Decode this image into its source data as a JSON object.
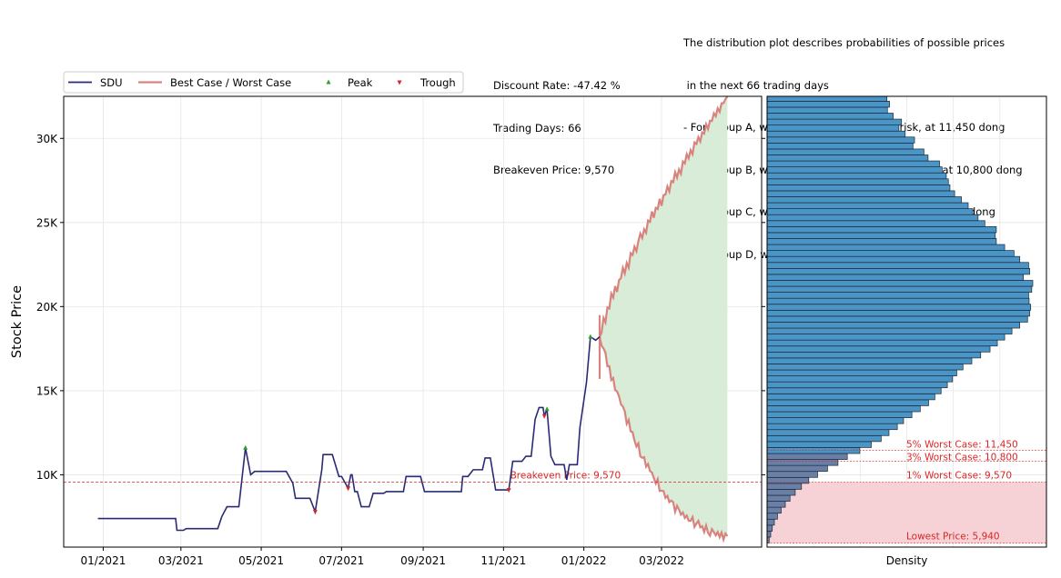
{
  "info_left": {
    "lines": [
      "Discount Rate: -47.42 %",
      "Trading Days: 66",
      "Breakeven Price: 9,570"
    ]
  },
  "info_right": {
    "lines": [
      "The distribution plot describes probabilities of possible prices",
      " in the next 66 trading days",
      "- For Group A, we propose to take higher risk, at 11,450 dong",
      "- For Group B, we propose to take moderate risk, at 10,800 dong",
      "- For Group C, we propose to take minor risk, at 9,570 dong",
      "- For Group D, we propose to take no risk, at 5,940 dong"
    ]
  },
  "colors": {
    "price_line": "#2b2b74",
    "band_line": "#d9837e",
    "band_fill": "#d8ecd8",
    "peak": "#2ca02c",
    "trough": "#d62728",
    "hist_bar": "#4a94c6",
    "hist_bar_low": "#6a7fa6",
    "risk_zone": "#f6d2d6",
    "breakeven": "#d62728"
  },
  "chart_data": [
    {
      "type": "line",
      "ylabel": "Stock Price",
      "xlabel": "",
      "ylim": [
        5700,
        32500
      ],
      "x_ticks": [
        "01/2021",
        "03/2021",
        "05/2021",
        "07/2021",
        "09/2021",
        "11/2021",
        "01/2022",
        "03/2022"
      ],
      "y_ticks": [
        "10K",
        "15K",
        "20K",
        "25K",
        "30K"
      ],
      "y_tick_values": [
        10000,
        15000,
        20000,
        25000,
        30000
      ],
      "grid": true,
      "legend": {
        "position": "top-left",
        "entries": [
          "SDU",
          "Best Case / Worst Case",
          "Peak",
          "Trough"
        ]
      },
      "breakeven": {
        "value": 9570,
        "label": "Breakeven Price: 9,570"
      },
      "series": [
        {
          "name": "SDU",
          "points": [
            [
              "2020-12-28",
              7400
            ],
            [
              "2021-02-25",
              7400
            ],
            [
              "2021-02-26",
              6700
            ],
            [
              "2021-03-03",
              6700
            ],
            [
              "2021-03-05",
              6800
            ],
            [
              "2021-03-29",
              6800
            ],
            [
              "2021-04-01",
              7500
            ],
            [
              "2021-04-05",
              8100
            ],
            [
              "2021-04-14",
              8100
            ],
            [
              "2021-04-19",
              11600
            ],
            [
              "2021-04-23",
              10000
            ],
            [
              "2021-04-26",
              10200
            ],
            [
              "2021-05-20",
              10200
            ],
            [
              "2021-05-25",
              9500
            ],
            [
              "2021-05-27",
              8600
            ],
            [
              "2021-06-07",
              8600
            ],
            [
              "2021-06-11",
              7800
            ],
            [
              "2021-06-16",
              10300
            ],
            [
              "2021-06-17",
              11200
            ],
            [
              "2021-06-24",
              11200
            ],
            [
              "2021-06-29",
              9900
            ],
            [
              "2021-07-01",
              9900
            ],
            [
              "2021-07-06",
              9200
            ],
            [
              "2021-07-08",
              10000
            ],
            [
              "2021-07-09",
              10000
            ],
            [
              "2021-07-11",
              9000
            ],
            [
              "2021-07-13",
              9000
            ],
            [
              "2021-07-16",
              8100
            ],
            [
              "2021-07-22",
              8100
            ],
            [
              "2021-07-25",
              8900
            ],
            [
              "2021-08-02",
              8900
            ],
            [
              "2021-08-04",
              9000
            ],
            [
              "2021-08-17",
              9000
            ],
            [
              "2021-08-19",
              9900
            ],
            [
              "2021-08-30",
              9900
            ],
            [
              "2021-09-02",
              9000
            ],
            [
              "2021-09-30",
              9000
            ],
            [
              "2021-10-01",
              9900
            ],
            [
              "2021-10-05",
              9900
            ],
            [
              "2021-10-09",
              10300
            ],
            [
              "2021-10-16",
              10300
            ],
            [
              "2021-10-18",
              11000
            ],
            [
              "2021-10-22",
              11000
            ],
            [
              "2021-10-26",
              9100
            ],
            [
              "2021-11-05",
              9100
            ],
            [
              "2021-11-08",
              10800
            ],
            [
              "2021-11-15",
              10800
            ],
            [
              "2021-11-18",
              11100
            ],
            [
              "2021-11-22",
              11100
            ],
            [
              "2021-11-25",
              13300
            ],
            [
              "2021-11-28",
              14000
            ],
            [
              "2021-12-01",
              14000
            ],
            [
              "2021-12-02",
              13500
            ],
            [
              "2021-12-04",
              13900
            ],
            [
              "2021-12-07",
              11100
            ],
            [
              "2021-12-10",
              10600
            ],
            [
              "2021-12-17",
              10600
            ],
            [
              "2021-12-19",
              9700
            ],
            [
              "2021-12-21",
              10600
            ],
            [
              "2021-12-27",
              10600
            ],
            [
              "2021-12-29",
              12800
            ],
            [
              "2022-01-03",
              15500
            ],
            [
              "2022-01-06",
              18200
            ],
            [
              "2022-01-10",
              18000
            ],
            [
              "2022-01-13",
              18200
            ]
          ]
        },
        {
          "name": "Best Case / Worst Case",
          "x_start": "2022-01-13",
          "x_end": "2022-04-20",
          "start_value": 18200,
          "best_end": 32500,
          "worst_end": 6600,
          "worst_min": 5940
        }
      ],
      "peaks": [
        [
          "2021-04-19",
          11600
        ],
        [
          "2021-12-04",
          13900
        ],
        [
          "2022-01-06",
          18200
        ]
      ],
      "troughs": [
        [
          "2021-06-11",
          7800
        ],
        [
          "2021-07-06",
          9200
        ],
        [
          "2021-11-05",
          9100
        ],
        [
          "2021-12-02",
          13500
        ]
      ]
    },
    {
      "type": "bar",
      "orientation": "horizontal",
      "xlabel": "Density",
      "bins_start": 5940,
      "bin_width": 355,
      "values": [
        0.4,
        0.7,
        1.0,
        1.4,
        2.0,
        2.7,
        3.5,
        4.4,
        5.4,
        6.6,
        8.0,
        9.7,
        11.6,
        13.6,
        15.4,
        17.8,
        20.0,
        21.9,
        23.4,
        25.0,
        26.2,
        27.8,
        29.4,
        31.0,
        32.2,
        33.4,
        34.6,
        35.6,
        36.4,
        37.6,
        39.3,
        41.0,
        42.8,
        44.2,
        45.6,
        47.0,
        48.5,
        50.0,
        50.4,
        50.6,
        50.3,
        50.2,
        50.8,
        51.0,
        49.2,
        50.4,
        50.2,
        48.5,
        47.4,
        45.6,
        44.0,
        43.8,
        44.0,
        41.8,
        40.5,
        39.5,
        38.6,
        37.3,
        36.0,
        35.1,
        34.8,
        34.4,
        33.6,
        33.1,
        30.9,
        30.1,
        28.0,
        28.3,
        26.5,
        25.3,
        25.8,
        24.2,
        23.1,
        23.5,
        23.0
      ]
    }
  ],
  "risk_levels": [
    {
      "label": "5% Worst Case: 11,450",
      "value": 11450
    },
    {
      "label": "3% Worst Case: 10,800",
      "value": 10800
    },
    {
      "label": "1% Worst Case: 9,570",
      "value": 9570
    },
    {
      "label": "Lowest Price: 5,940",
      "value": 5940
    }
  ]
}
